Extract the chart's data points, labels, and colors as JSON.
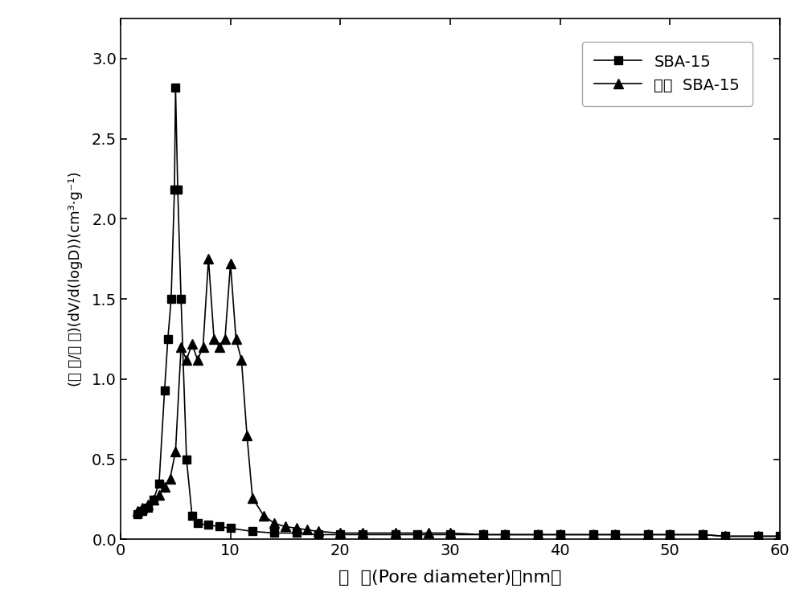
{
  "sba15_x": [
    1.5,
    2.0,
    2.5,
    3.0,
    3.5,
    4.0,
    4.3,
    4.6,
    4.9,
    5.0,
    5.2,
    5.5,
    6.0,
    6.5,
    7.0,
    8.0,
    9.0,
    10.0,
    12.0,
    14.0,
    16.0,
    18.0,
    20.0,
    22.0,
    25.0,
    27.0,
    30.0,
    33.0,
    35.0,
    38.0,
    40.0,
    43.0,
    45.0,
    48.0,
    50.0,
    53.0,
    55.0,
    58.0,
    60.0
  ],
  "sba15_y": [
    0.16,
    0.18,
    0.2,
    0.25,
    0.35,
    0.93,
    1.25,
    1.5,
    2.18,
    2.82,
    2.18,
    1.5,
    0.5,
    0.15,
    0.1,
    0.09,
    0.08,
    0.07,
    0.05,
    0.04,
    0.04,
    0.03,
    0.03,
    0.03,
    0.03,
    0.03,
    0.03,
    0.03,
    0.03,
    0.03,
    0.03,
    0.03,
    0.03,
    0.03,
    0.03,
    0.03,
    0.02,
    0.02,
    0.02
  ],
  "expanded_x": [
    1.5,
    2.0,
    2.5,
    3.0,
    3.5,
    4.0,
    4.5,
    5.0,
    5.5,
    6.0,
    6.5,
    7.0,
    7.5,
    8.0,
    8.5,
    9.0,
    9.5,
    10.0,
    10.5,
    11.0,
    11.5,
    12.0,
    13.0,
    14.0,
    15.0,
    16.0,
    17.0,
    18.0,
    20.0,
    22.0,
    25.0,
    28.0,
    30.0,
    33.0,
    35.0,
    38.0,
    40.0,
    43.0,
    45.0,
    48.0,
    50.0,
    53.0,
    55.0,
    58.0,
    60.0
  ],
  "expanded_y": [
    0.18,
    0.2,
    0.22,
    0.25,
    0.28,
    0.33,
    0.38,
    0.55,
    1.2,
    1.12,
    1.22,
    1.12,
    1.2,
    1.75,
    1.25,
    1.2,
    1.25,
    1.72,
    1.25,
    1.12,
    0.65,
    0.26,
    0.15,
    0.1,
    0.08,
    0.07,
    0.06,
    0.05,
    0.04,
    0.04,
    0.04,
    0.04,
    0.04,
    0.03,
    0.03,
    0.03,
    0.03,
    0.03,
    0.03,
    0.03,
    0.03,
    0.03,
    0.02,
    0.02,
    0.02
  ],
  "xlabel": "孔  径(Pore diameter)（nm）",
  "ylabel": "(孔 容/孔 径)(dV/d(logD))(cm³·g⁻¹)",
  "legend1": "SBA-15",
  "legend2": "扩孔  SBA-15",
  "xlim": [
    0,
    60
  ],
  "ylim": [
    0.0,
    3.25
  ],
  "xticks": [
    0,
    10,
    20,
    30,
    40,
    50,
    60
  ],
  "yticks": [
    0.0,
    0.5,
    1.0,
    1.5,
    2.0,
    2.5,
    3.0
  ],
  "line_color": "#000000",
  "background_color": "#ffffff"
}
